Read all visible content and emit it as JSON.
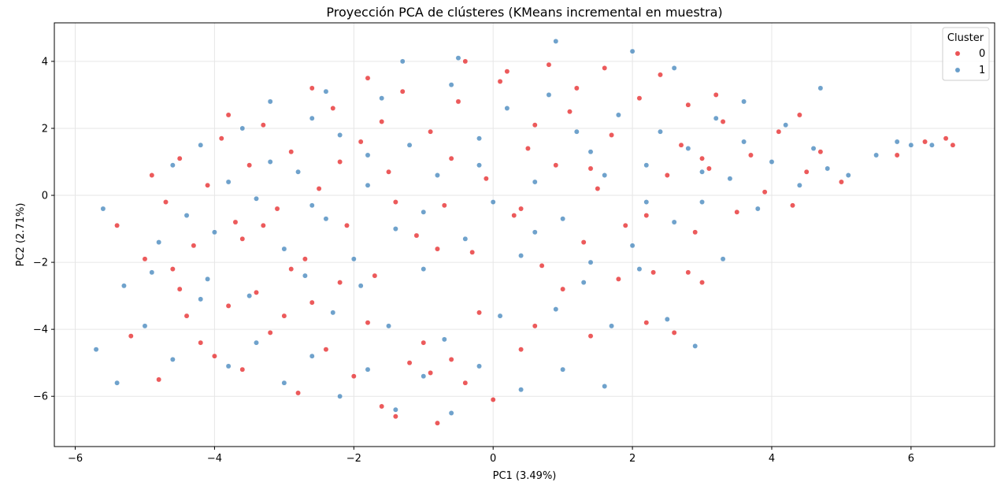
{
  "chart_data": {
    "type": "scatter",
    "title": "Proyección PCA de clústeres (KMeans incremental en muestra)",
    "xlabel": "PC1 (3.49%)",
    "ylabel": "PC2 (2.71%)",
    "xlim": [
      -6.3,
      7.2
    ],
    "ylim": [
      -7.5,
      5.15
    ],
    "xticks": [
      -6,
      -4,
      -2,
      0,
      2,
      4,
      6
    ],
    "xtick_labels": [
      "−6",
      "−4",
      "−2",
      "0",
      "2",
      "4",
      "6"
    ],
    "yticks": [
      -6,
      -4,
      -2,
      0,
      2,
      4
    ],
    "ytick_labels": [
      "−6",
      "−4",
      "−2",
      "0",
      "2",
      "4"
    ],
    "grid": true,
    "legend": {
      "title": "Cluster",
      "placement": "top-right",
      "entries": [
        "0",
        "1"
      ]
    },
    "series": [
      {
        "name": "0",
        "color": "#e41a1c",
        "points": [
          [
            -4.9,
            0.6
          ],
          [
            -4.7,
            -0.2
          ],
          [
            -4.5,
            1.1
          ],
          [
            -4.3,
            -1.5
          ],
          [
            -4.1,
            0.3
          ],
          [
            -3.9,
            1.7
          ],
          [
            -3.7,
            -0.8
          ],
          [
            -3.5,
            0.9
          ],
          [
            -3.3,
            2.1
          ],
          [
            -3.1,
            -0.4
          ],
          [
            -2.9,
            1.3
          ],
          [
            -2.7,
            -1.9
          ],
          [
            -2.5,
            0.2
          ],
          [
            -2.3,
            2.6
          ],
          [
            -2.1,
            -0.9
          ],
          [
            -1.9,
            1.6
          ],
          [
            -1.7,
            -2.4
          ],
          [
            -1.5,
            0.7
          ],
          [
            -1.3,
            3.1
          ],
          [
            -1.1,
            -1.2
          ],
          [
            -0.9,
            1.9
          ],
          [
            -0.7,
            -0.3
          ],
          [
            -0.5,
            2.8
          ],
          [
            -0.3,
            -1.7
          ],
          [
            -0.1,
            0.5
          ],
          [
            0.1,
            3.4
          ],
          [
            0.3,
            -0.6
          ],
          [
            0.5,
            1.4
          ],
          [
            0.7,
            -2.1
          ],
          [
            0.9,
            0.9
          ],
          [
            1.1,
            2.5
          ],
          [
            1.3,
            -1.4
          ],
          [
            1.5,
            0.2
          ],
          [
            1.7,
            1.8
          ],
          [
            1.9,
            -0.9
          ],
          [
            2.1,
            2.9
          ],
          [
            2.3,
            -2.3
          ],
          [
            2.5,
            0.6
          ],
          [
            2.7,
            1.5
          ],
          [
            2.9,
            -1.1
          ],
          [
            3.1,
            0.8
          ],
          [
            3.3,
            2.2
          ],
          [
            3.5,
            -0.5
          ],
          [
            3.7,
            1.2
          ],
          [
            3.9,
            0.1
          ],
          [
            4.1,
            1.9
          ],
          [
            4.3,
            -0.3
          ],
          [
            4.5,
            0.7
          ],
          [
            4.7,
            1.3
          ],
          [
            5.0,
            0.4
          ],
          [
            5.8,
            1.2
          ],
          [
            6.2,
            1.6
          ],
          [
            6.5,
            1.7
          ],
          [
            6.6,
            1.5
          ],
          [
            -5.2,
            -4.2
          ],
          [
            -4.8,
            -5.5
          ],
          [
            -4.4,
            -3.6
          ],
          [
            -4.0,
            -4.8
          ],
          [
            -3.6,
            -5.2
          ],
          [
            -3.2,
            -4.1
          ],
          [
            -2.8,
            -5.9
          ],
          [
            -2.4,
            -4.6
          ],
          [
            -2.0,
            -5.4
          ],
          [
            -1.6,
            -6.3
          ],
          [
            -1.2,
            -5.0
          ],
          [
            -0.8,
            -6.8
          ],
          [
            -0.4,
            -5.6
          ],
          [
            0.0,
            -6.1
          ],
          [
            -2.6,
            -3.2
          ],
          [
            -1.8,
            -3.8
          ],
          [
            -1.0,
            -4.4
          ],
          [
            -0.2,
            -3.5
          ],
          [
            0.6,
            -3.9
          ],
          [
            1.4,
            -4.2
          ],
          [
            2.2,
            -3.8
          ],
          [
            2.6,
            -4.1
          ],
          [
            -3.4,
            -2.9
          ],
          [
            -2.2,
            -2.6
          ],
          [
            -4.6,
            -2.2
          ],
          [
            -3.8,
            -3.3
          ],
          [
            -5.0,
            -1.9
          ],
          [
            -5.4,
            -0.9
          ],
          [
            -4.2,
            -4.4
          ],
          [
            -3.0,
            -3.6
          ],
          [
            1.0,
            -2.8
          ],
          [
            1.8,
            -2.5
          ],
          [
            3.0,
            -2.6
          ],
          [
            2.8,
            -2.3
          ],
          [
            0.4,
            -4.6
          ],
          [
            -0.6,
            -4.9
          ],
          [
            -1.4,
            -6.6
          ],
          [
            -0.9,
            -5.3
          ],
          [
            -2.9,
            -2.2
          ],
          [
            -3.6,
            -1.3
          ],
          [
            -4.5,
            -2.8
          ],
          [
            -3.3,
            -0.9
          ],
          [
            0.8,
            3.9
          ],
          [
            -0.4,
            4.0
          ],
          [
            -2.6,
            3.2
          ],
          [
            -3.8,
            2.4
          ],
          [
            1.6,
            3.8
          ],
          [
            2.4,
            3.6
          ],
          [
            3.2,
            3.0
          ],
          [
            4.4,
            2.4
          ],
          [
            -1.8,
            3.5
          ],
          [
            0.2,
            3.7
          ],
          [
            1.2,
            3.2
          ],
          [
            2.8,
            2.7
          ],
          [
            -2.2,
            1.0
          ],
          [
            -1.4,
            -0.2
          ],
          [
            -0.6,
            1.1
          ],
          [
            0.4,
            -0.4
          ],
          [
            1.4,
            0.8
          ],
          [
            2.2,
            -0.6
          ],
          [
            3.0,
            1.1
          ],
          [
            -1.6,
            2.2
          ],
          [
            -0.8,
            -1.6
          ],
          [
            0.6,
            2.1
          ]
        ]
      },
      {
        "name": "1",
        "color": "#377eb8",
        "points": [
          [
            -5.6,
            -0.4
          ],
          [
            -5.7,
            -4.6
          ],
          [
            -5.3,
            -2.7
          ],
          [
            -5.4,
            -5.6
          ],
          [
            -4.8,
            -1.4
          ],
          [
            -4.6,
            0.9
          ],
          [
            -4.4,
            -0.6
          ],
          [
            -4.2,
            1.5
          ],
          [
            -4.0,
            -1.1
          ],
          [
            -3.8,
            0.4
          ],
          [
            -3.6,
            2.0
          ],
          [
            -3.4,
            -0.1
          ],
          [
            -3.2,
            1.0
          ],
          [
            -3.0,
            -1.6
          ],
          [
            -2.8,
            0.7
          ],
          [
            -2.6,
            2.3
          ],
          [
            -2.4,
            -0.7
          ],
          [
            -2.2,
            1.8
          ],
          [
            -2.0,
            -1.9
          ],
          [
            -1.8,
            0.3
          ],
          [
            -1.6,
            2.9
          ],
          [
            -1.4,
            -1.0
          ],
          [
            -1.2,
            1.5
          ],
          [
            -1.0,
            -2.2
          ],
          [
            -0.8,
            0.6
          ],
          [
            -0.6,
            3.3
          ],
          [
            -0.4,
            -1.3
          ],
          [
            -0.2,
            1.7
          ],
          [
            0.0,
            -0.2
          ],
          [
            0.2,
            2.6
          ],
          [
            0.4,
            -1.8
          ],
          [
            0.6,
            0.4
          ],
          [
            0.8,
            3.0
          ],
          [
            1.0,
            -0.7
          ],
          [
            1.2,
            1.9
          ],
          [
            1.4,
            -2.0
          ],
          [
            1.6,
            0.6
          ],
          [
            1.8,
            2.4
          ],
          [
            2.0,
            -1.5
          ],
          [
            2.2,
            0.9
          ],
          [
            2.4,
            1.9
          ],
          [
            2.6,
            -0.8
          ],
          [
            2.8,
            1.4
          ],
          [
            3.0,
            -0.2
          ],
          [
            3.2,
            2.3
          ],
          [
            3.4,
            0.5
          ],
          [
            3.6,
            1.6
          ],
          [
            3.8,
            -0.4
          ],
          [
            4.0,
            1.0
          ],
          [
            4.2,
            2.1
          ],
          [
            4.4,
            0.3
          ],
          [
            4.6,
            1.4
          ],
          [
            4.8,
            0.8
          ],
          [
            5.1,
            0.6
          ],
          [
            5.5,
            1.2
          ],
          [
            5.8,
            1.6
          ],
          [
            6.0,
            1.5
          ],
          [
            6.3,
            1.5
          ],
          [
            4.7,
            3.2
          ],
          [
            -5.0,
            -3.9
          ],
          [
            -4.6,
            -4.9
          ],
          [
            -4.2,
            -3.1
          ],
          [
            -3.8,
            -5.1
          ],
          [
            -3.4,
            -4.4
          ],
          [
            -3.0,
            -5.6
          ],
          [
            -2.6,
            -4.8
          ],
          [
            -2.2,
            -6.0
          ],
          [
            -1.8,
            -5.2
          ],
          [
            -1.4,
            -6.4
          ],
          [
            -1.0,
            -5.4
          ],
          [
            -0.6,
            -6.5
          ],
          [
            -0.2,
            -5.1
          ],
          [
            0.4,
            -5.8
          ],
          [
            1.0,
            -5.2
          ],
          [
            1.6,
            -5.7
          ],
          [
            -2.3,
            -3.5
          ],
          [
            -1.5,
            -3.9
          ],
          [
            -0.7,
            -4.3
          ],
          [
            0.1,
            -3.6
          ],
          [
            0.9,
            -3.4
          ],
          [
            1.7,
            -3.9
          ],
          [
            2.5,
            -3.7
          ],
          [
            2.9,
            -4.5
          ],
          [
            -4.1,
            -2.5
          ],
          [
            -3.5,
            -3.0
          ],
          [
            -2.7,
            -2.4
          ],
          [
            -1.9,
            -2.7
          ],
          [
            1.3,
            -2.6
          ],
          [
            2.1,
            -2.2
          ],
          [
            3.3,
            -1.9
          ],
          [
            -4.9,
            -2.3
          ],
          [
            0.9,
            4.6
          ],
          [
            -0.5,
            4.1
          ],
          [
            -1.3,
            4.0
          ],
          [
            2.0,
            4.3
          ],
          [
            2.6,
            3.8
          ],
          [
            3.6,
            2.8
          ],
          [
            -2.4,
            3.1
          ],
          [
            -3.2,
            2.8
          ],
          [
            -1.0,
            -0.5
          ],
          [
            -0.2,
            0.9
          ],
          [
            0.6,
            -1.1
          ],
          [
            1.4,
            1.3
          ],
          [
            2.2,
            -0.2
          ],
          [
            3.0,
            0.7
          ],
          [
            -1.8,
            1.2
          ],
          [
            -2.6,
            -0.3
          ]
        ]
      }
    ]
  }
}
